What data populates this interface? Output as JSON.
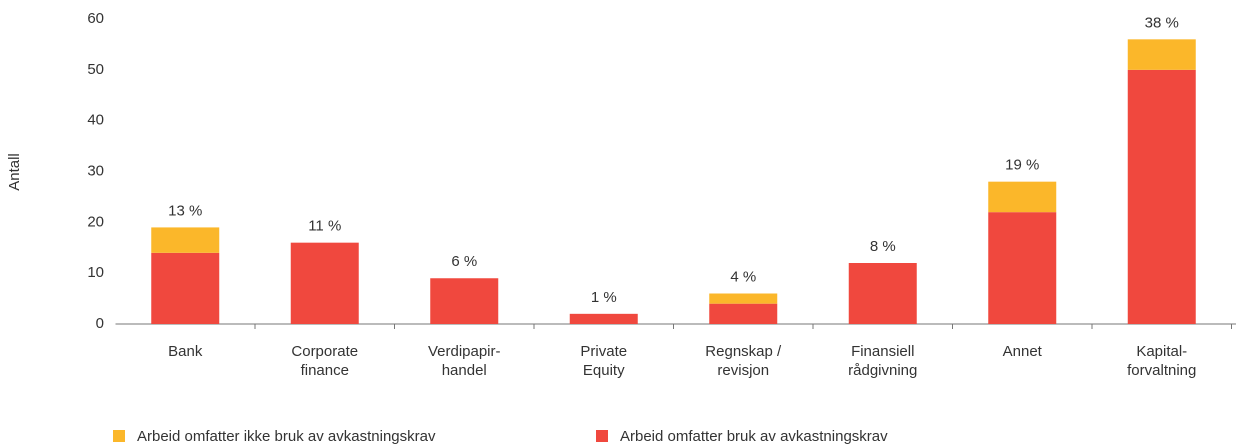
{
  "chart_data": {
    "type": "stacked_bar",
    "ylabel": "Antall",
    "categories": [
      "Bank",
      "Corporate\nfinance",
      "Verdipapir-\nhandel",
      "Private\nEquity",
      "Regnskap /\nrevisjon",
      "Finansiell\nrådgivning",
      "Annet",
      "Kapital-\nforvaltning"
    ],
    "series": [
      {
        "name": "Arbeid omfatter ikke bruk av avkastningskrav",
        "color": "#fbb72a",
        "values": [
          5,
          0,
          0,
          0,
          2,
          0,
          6,
          6
        ]
      },
      {
        "name": "Arbeid omfatter bruk av avkastningskrav",
        "color": "#f0483e",
        "values": [
          14,
          16,
          9,
          2,
          4,
          12,
          22,
          50
        ]
      }
    ],
    "annotations": [
      "13 %",
      "11 %",
      "6 %",
      "1 %",
      "4 %",
      "8 %",
      "19 %",
      "38 %"
    ],
    "ylim": [
      0,
      60
    ],
    "yticks": [
      0,
      10,
      20,
      30,
      40,
      50,
      60
    ],
    "grid": false,
    "legend": "bottom"
  }
}
